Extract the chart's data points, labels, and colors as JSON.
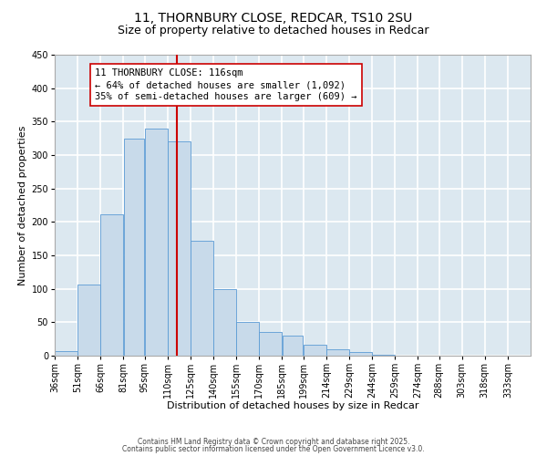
{
  "title_line1": "11, THORNBURY CLOSE, REDCAR, TS10 2SU",
  "title_line2": "Size of property relative to detached houses in Redcar",
  "xlabel": "Distribution of detached houses by size in Redcar",
  "ylabel": "Number of detached properties",
  "bar_color": "#c8daea",
  "bar_edge_color": "#5b9bd5",
  "background_color": "#dce8f0",
  "grid_color": "#ffffff",
  "bin_labels": [
    "36sqm",
    "51sqm",
    "66sqm",
    "81sqm",
    "95sqm",
    "110sqm",
    "125sqm",
    "140sqm",
    "155sqm",
    "170sqm",
    "185sqm",
    "199sqm",
    "214sqm",
    "229sqm",
    "244sqm",
    "259sqm",
    "274sqm",
    "288sqm",
    "303sqm",
    "318sqm",
    "333sqm"
  ],
  "bin_edges": [
    36,
    51,
    66,
    81,
    95,
    110,
    125,
    140,
    155,
    170,
    185,
    199,
    214,
    229,
    244,
    259,
    274,
    288,
    303,
    318,
    333,
    348
  ],
  "bar_heights": [
    7,
    107,
    211,
    325,
    340,
    320,
    172,
    99,
    50,
    36,
    30,
    17,
    9,
    5,
    1,
    0,
    0,
    0,
    0,
    0,
    0
  ],
  "vline_x": 116,
  "vline_color": "#cc0000",
  "annotation_title": "11 THORNBURY CLOSE: 116sqm",
  "annotation_line1": "← 64% of detached houses are smaller (1,092)",
  "annotation_line2": "35% of semi-detached houses are larger (609) →",
  "annotation_box_color": "#ffffff",
  "annotation_box_edge": "#cc0000",
  "ylim": [
    0,
    450
  ],
  "yticks": [
    0,
    50,
    100,
    150,
    200,
    250,
    300,
    350,
    400,
    450
  ],
  "footer_line1": "Contains HM Land Registry data © Crown copyright and database right 2025.",
  "footer_line2": "Contains public sector information licensed under the Open Government Licence v3.0.",
  "title_fontsize": 10,
  "subtitle_fontsize": 9,
  "axis_label_fontsize": 8,
  "tick_fontsize": 7,
  "annotation_fontsize": 7.5,
  "footer_fontsize": 5.5
}
